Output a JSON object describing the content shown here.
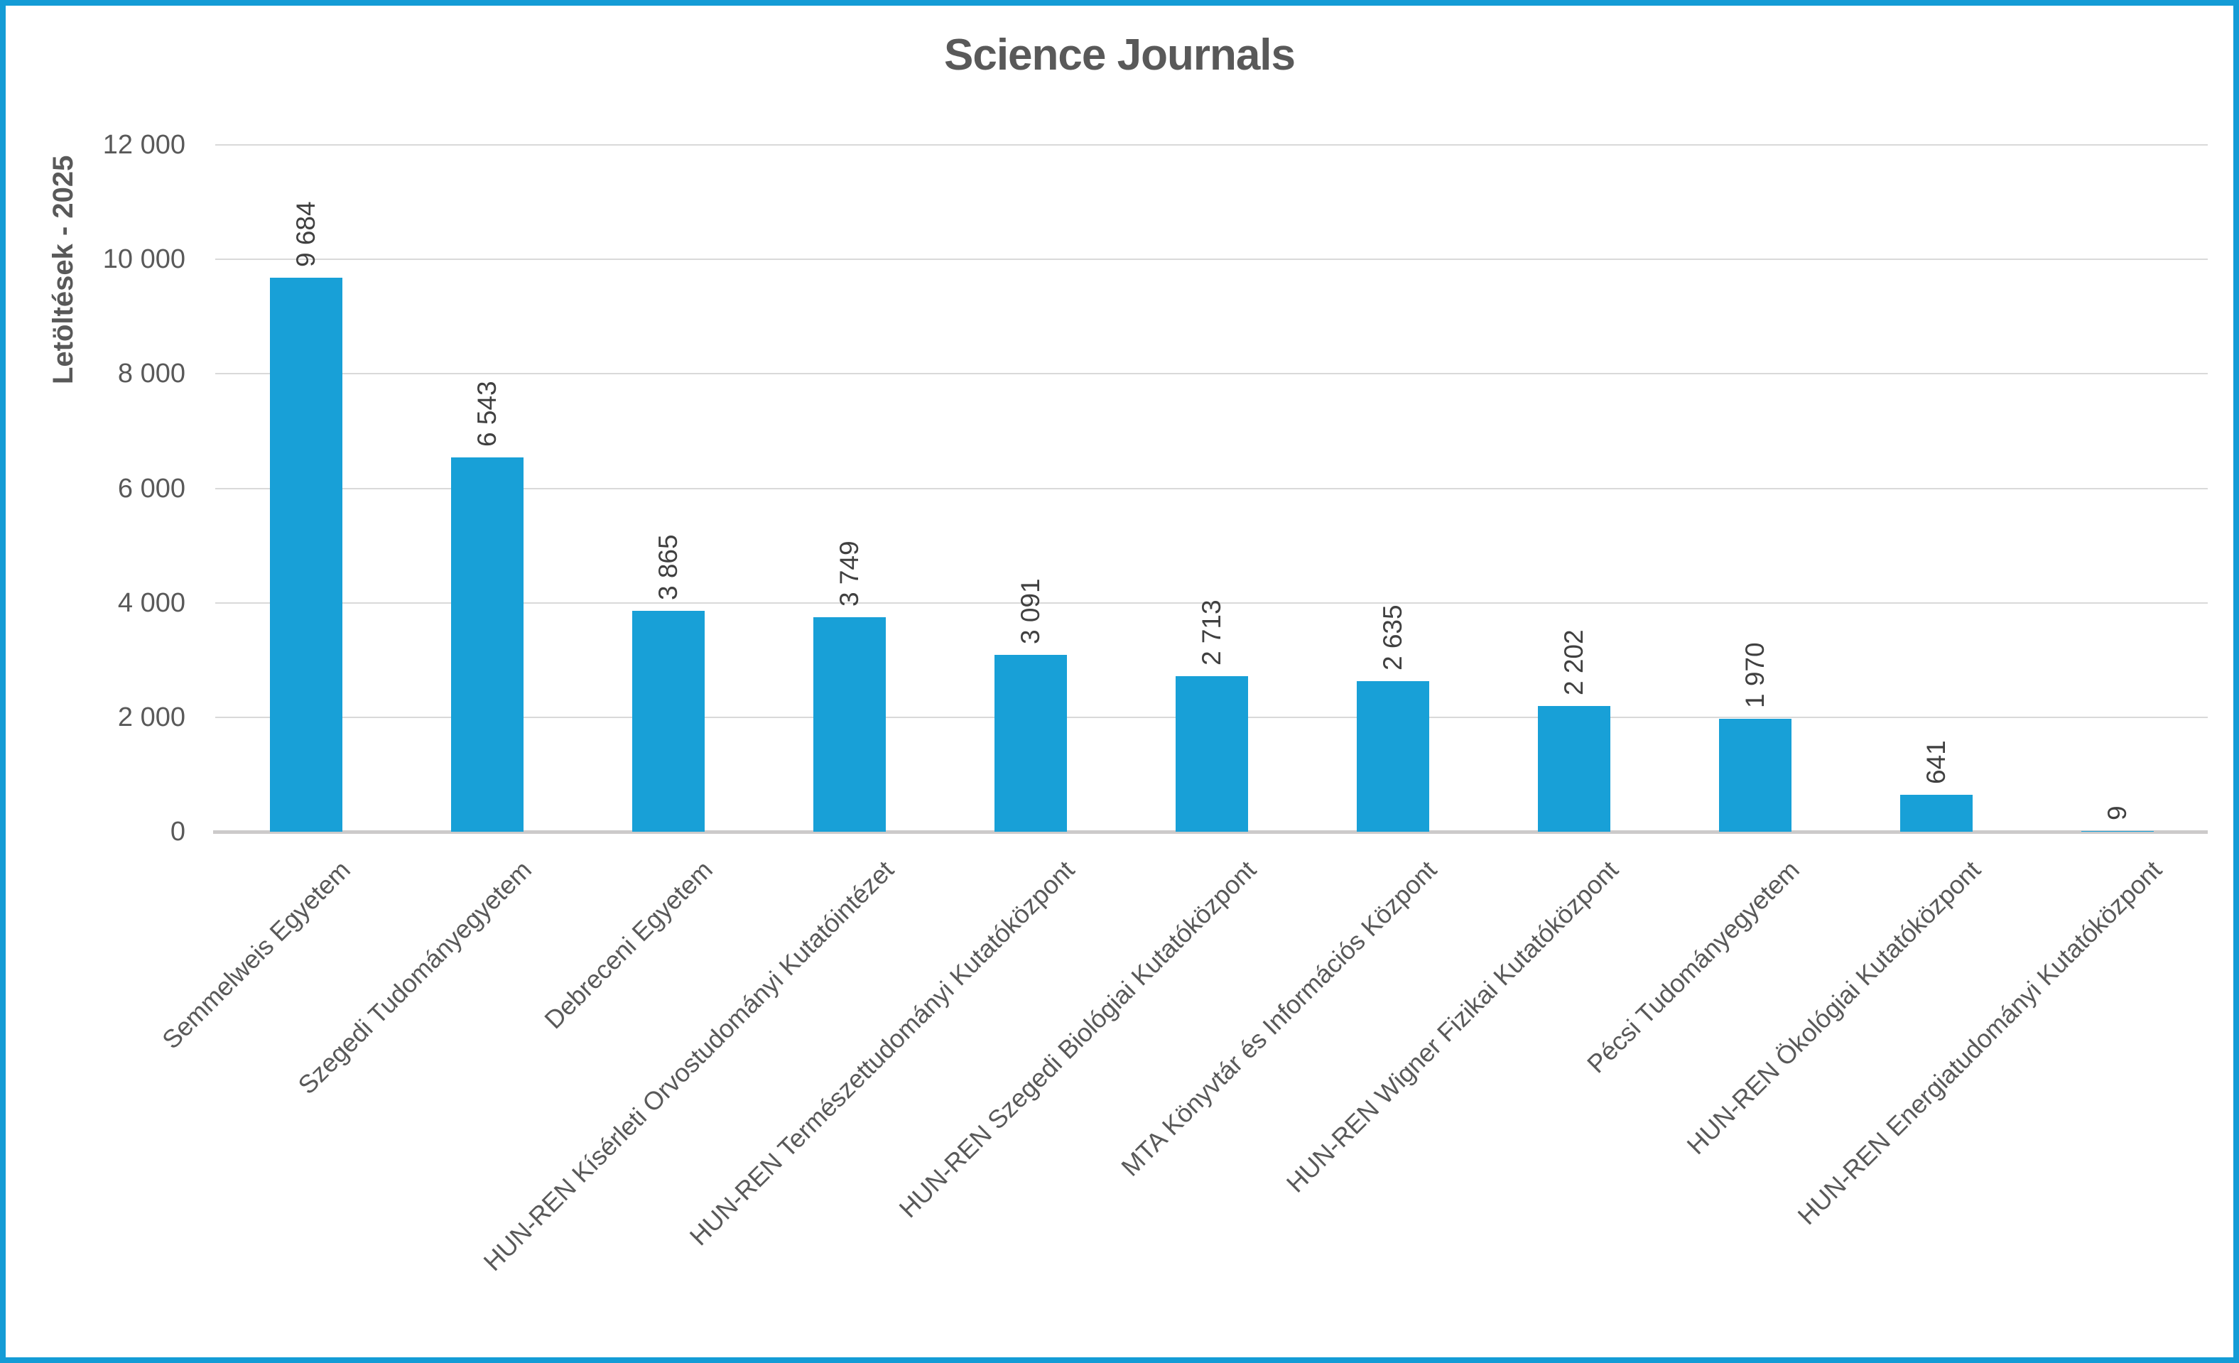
{
  "title": "Science Journals",
  "y_axis": {
    "title": "Letöltések - 2025",
    "ticks": [
      {
        "label": "12 000",
        "value": 12000
      },
      {
        "label": "10 000",
        "value": 10000
      },
      {
        "label": "8 000",
        "value": 8000
      },
      {
        "label": "6 000",
        "value": 6000
      },
      {
        "label": "4 000",
        "value": 4000
      },
      {
        "label": "2 000",
        "value": 2000
      },
      {
        "label": "0",
        "value": 0
      }
    ]
  },
  "chart_data": {
    "type": "bar",
    "title": "Science Journals",
    "xlabel": "",
    "ylabel": "Letöltések - 2025",
    "ylim": [
      0,
      12000
    ],
    "grid": true,
    "legend": false,
    "bar_color": "#18A0D7",
    "categories": [
      "Semmelweis Egyetem",
      "Szegedi Tudományegyetem",
      "Debreceni Egyetem",
      "HUN-REN Kísérleti Orvostudományi Kutatóintézet",
      "HUN-REN Természettudományi Kutatóközpont",
      "HUN-REN Szegedi Biológiai Kutatóközpont",
      "MTA Könyvtár és Információs Központ",
      "HUN-REN Wigner Fizikai Kutatóközpont",
      "Pécsi Tudományegyetem",
      "HUN-REN Ökológiai Kutatóközpont",
      "HUN-REN Energiatudományi Kutatóközpont"
    ],
    "values": [
      9684,
      6543,
      3865,
      3749,
      3091,
      2713,
      2635,
      2202,
      1970,
      641,
      9
    ],
    "value_labels": [
      "9 684",
      "6 543",
      "3 865",
      "3 749",
      "3 091",
      "2 713",
      "2 635",
      "2 202",
      "1 970",
      "641",
      "9"
    ]
  },
  "colors": {
    "accent_blue": "#18A0D7",
    "frame_border": "#149CD6",
    "gridline": "#D9D9D9",
    "axis_line": "#CCCACA",
    "text_grey": "#595959",
    "value_text": "#404040"
  }
}
